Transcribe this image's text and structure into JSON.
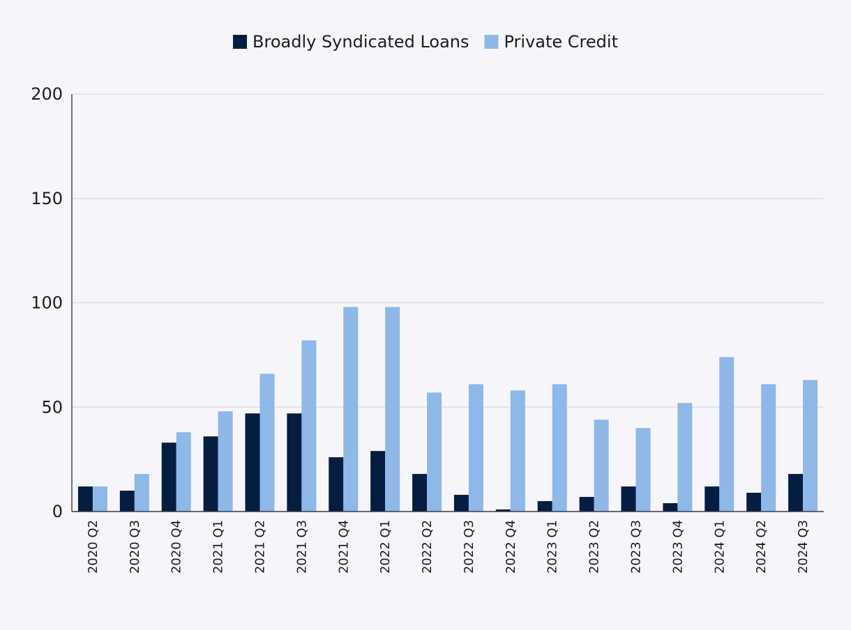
{
  "chart_data": {
    "type": "bar",
    "title": "",
    "xlabel": "",
    "ylabel": "",
    "ylim": [
      0,
      200
    ],
    "yticks": [
      0,
      50,
      100,
      150,
      200
    ],
    "grid": true,
    "legend_position": "top-center",
    "categories": [
      "2020 Q2",
      "2020 Q3",
      "2020 Q4",
      "2021 Q1",
      "2021 Q2",
      "2021 Q3",
      "2021 Q4",
      "2022 Q1",
      "2022 Q2",
      "2022 Q3",
      "2022 Q4",
      "2023 Q1",
      "2023 Q2",
      "2023 Q3",
      "2023 Q4",
      "2024 Q1",
      "2024 Q2",
      "2024 Q3"
    ],
    "series": [
      {
        "name": "Broadly Syndicated Loans",
        "color": "#041e42",
        "values": [
          12,
          10,
          33,
          36,
          47,
          47,
          26,
          29,
          18,
          8,
          1,
          5,
          7,
          12,
          4,
          12,
          9,
          18
        ]
      },
      {
        "name": "Private Credit",
        "color": "#8db8e8",
        "values": [
          12,
          18,
          38,
          48,
          66,
          82,
          98,
          98,
          57,
          61,
          58,
          61,
          44,
          40,
          52,
          74,
          61,
          63
        ]
      }
    ]
  }
}
